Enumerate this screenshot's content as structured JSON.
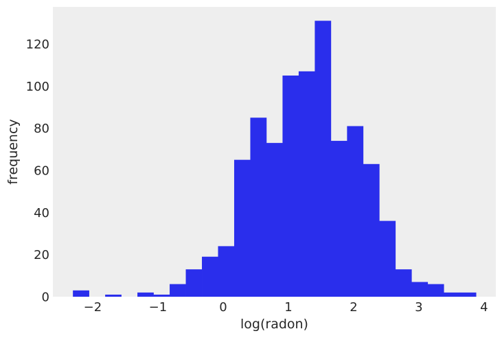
{
  "chart_data": {
    "type": "bar",
    "subtype": "histogram",
    "title": "",
    "xlabel": "log(radon)",
    "ylabel": "frequency",
    "xlim": [
      -2.61,
      4.18
    ],
    "ylim": [
      0,
      137.6
    ],
    "xticks": [
      -2,
      -1,
      0,
      1,
      2,
      3,
      4
    ],
    "xtick_labels": [
      "−2",
      "−1",
      "0",
      "1",
      "2",
      "3",
      "4"
    ],
    "yticks": [
      0,
      20,
      40,
      60,
      80,
      100,
      120
    ],
    "ytick_labels": [
      "0",
      "20",
      "40",
      "60",
      "80",
      "100",
      "120"
    ],
    "grid": false,
    "bin_start": -2.303,
    "bin_width": 0.2472,
    "values": [
      3,
      0,
      1,
      0,
      2,
      1,
      6,
      13,
      19,
      24,
      65,
      85,
      73,
      105,
      107,
      131,
      74,
      81,
      63,
      36,
      13,
      7,
      6,
      2,
      2
    ],
    "colors": {
      "bar": "#2a2eec",
      "background": "#eeeeee"
    }
  }
}
